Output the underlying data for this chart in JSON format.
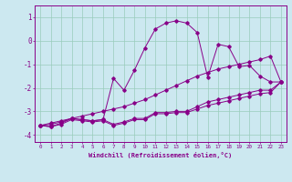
{
  "xlabel": "Windchill (Refroidissement éolien,°C)",
  "background_color": "#cce8f0",
  "grid_color": "#99ccbb",
  "line_color": "#880088",
  "x_hours": [
    0,
    1,
    2,
    3,
    4,
    5,
    6,
    7,
    8,
    9,
    10,
    11,
    12,
    13,
    14,
    15,
    16,
    17,
    18,
    19,
    20,
    21,
    22,
    23
  ],
  "y_main": [
    -3.6,
    -3.65,
    -3.5,
    -3.3,
    -3.35,
    -3.4,
    -3.35,
    -1.6,
    -2.1,
    -1.25,
    -0.3,
    0.5,
    0.75,
    0.85,
    0.75,
    0.35,
    -1.55,
    -0.15,
    -0.25,
    -1.1,
    -1.05,
    -1.5,
    -1.75,
    -1.75
  ],
  "y_upper": [
    -3.6,
    -3.55,
    -3.45,
    -3.3,
    -3.35,
    -3.4,
    -3.35,
    -3.55,
    -3.45,
    -3.3,
    -3.3,
    -3.05,
    -3.05,
    -3.0,
    -3.0,
    -2.8,
    -2.6,
    -2.5,
    -2.4,
    -2.3,
    -2.2,
    -2.1,
    -2.1,
    -1.75
  ],
  "y_lower": [
    -3.6,
    -3.65,
    -3.55,
    -3.35,
    -3.4,
    -3.45,
    -3.4,
    -3.6,
    -3.5,
    -3.35,
    -3.35,
    -3.1,
    -3.1,
    -3.05,
    -3.05,
    -2.9,
    -2.75,
    -2.65,
    -2.55,
    -2.45,
    -2.35,
    -2.25,
    -2.2,
    -1.75
  ],
  "y_diag": [
    -3.6,
    -3.5,
    -3.4,
    -3.3,
    -3.2,
    -3.1,
    -3.0,
    -2.9,
    -2.8,
    -2.65,
    -2.5,
    -2.3,
    -2.1,
    -1.9,
    -1.7,
    -1.5,
    -1.35,
    -1.2,
    -1.1,
    -1.0,
    -0.9,
    -0.8,
    -0.65,
    -1.75
  ],
  "ylim": [
    -4.3,
    1.5
  ],
  "xlim": [
    -0.5,
    23.5
  ],
  "yticks": [
    -4,
    -3,
    -2,
    -1,
    0,
    1
  ],
  "xticks": [
    0,
    1,
    2,
    3,
    4,
    5,
    6,
    7,
    8,
    9,
    10,
    11,
    12,
    13,
    14,
    15,
    16,
    17,
    18,
    19,
    20,
    21,
    22,
    23
  ]
}
